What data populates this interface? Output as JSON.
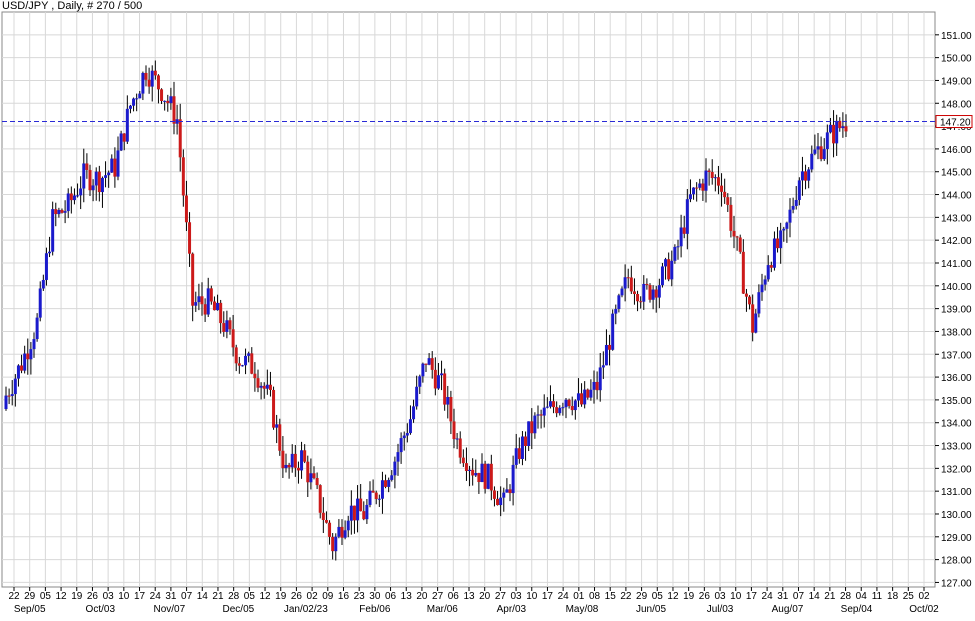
{
  "chart_title": "USD/JPY , Daily, # 270 / 500",
  "colors": {
    "up": "#1a1acc",
    "down": "#cc1a1a",
    "grid": "#d8d8d8",
    "current_line": "#2a2ad6",
    "price_box_border": "#cc0000"
  },
  "chart_data": {
    "type": "candlestick",
    "title": "USD/JPY , Daily, # 270 / 500",
    "ylim": [
      126.8,
      152.0
    ],
    "y_ticks": [
      "151.00",
      "150.00",
      "149.00",
      "148.00",
      "147.00",
      "146.00",
      "145.00",
      "144.00",
      "143.00",
      "142.00",
      "141.00",
      "140.00",
      "139.00",
      "138.00",
      "137.00",
      "136.00",
      "135.00",
      "134.00",
      "133.00",
      "132.00",
      "131.00",
      "130.00",
      "129.00",
      "128.00",
      "127.00"
    ],
    "current_price": "147.20",
    "x_tick_labels": [
      "22",
      "29",
      "05",
      "12",
      "19",
      "26",
      "03",
      "10",
      "17",
      "24",
      "31",
      "07",
      "14",
      "21",
      "28",
      "05",
      "12",
      "19",
      "26",
      "02",
      "09",
      "16",
      "23",
      "30",
      "06",
      "13",
      "20",
      "27",
      "06",
      "13",
      "20",
      "27",
      "03",
      "10",
      "17",
      "24",
      "01",
      "08",
      "15",
      "22",
      "29",
      "05",
      "12",
      "19",
      "26",
      "03",
      "10",
      "17",
      "24",
      "31",
      "07",
      "14",
      "21",
      "28",
      "04",
      "11",
      "18",
      "25",
      "02"
    ],
    "x_month_labels": [
      "Sep/05",
      "Oct/03",
      "Nov/07",
      "Dec/05",
      "Jan/02/23",
      "Feb/06",
      "Mar/06",
      "Apr/03",
      "May/08",
      "Jun/05",
      "Jul/03",
      "Aug/07",
      "Sep/04",
      "Oct/02"
    ],
    "weekly_closes": [
      135.2,
      136.6,
      138.4,
      142.9,
      143.5,
      144.8,
      144.7,
      145.2,
      147.9,
      149.5,
      148.6,
      147.3,
      139.2,
      139.3,
      138.3,
      136.8,
      136.4,
      134.9,
      131.8,
      132.5,
      130.8,
      128.6,
      130.2,
      130.0,
      131.2,
      132.4,
      134.2,
      136.8,
      135.6,
      133.2,
      132.0,
      131.6,
      130.4,
      132.8,
      134.0,
      134.6,
      135.2,
      134.8,
      135.6,
      138.2,
      140.4,
      139.6,
      140.2,
      141.2,
      143.8,
      144.8,
      144.6,
      141.6,
      138.2,
      141.2,
      142.0,
      144.8,
      145.8,
      146.6,
      147.2
    ]
  }
}
